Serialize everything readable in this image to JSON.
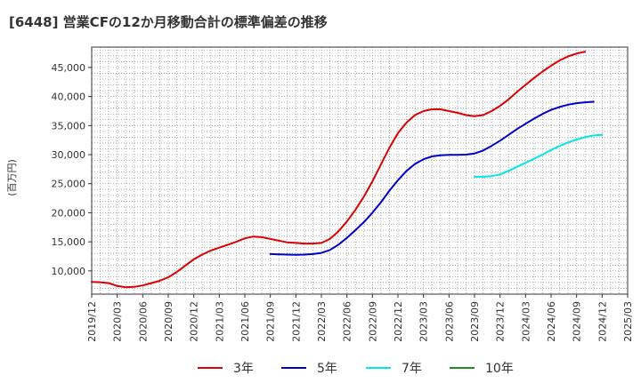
{
  "chart_data": {
    "type": "line",
    "title": "[6448]  営業CFの12か月移動合計の標準偏差の推移",
    "ylabel": "(百万円)",
    "xlabel": "",
    "xlim": [
      "2019-12",
      "2025-03"
    ],
    "ylim": [
      6000,
      48500
    ],
    "yticks": [
      10000,
      15000,
      20000,
      25000,
      30000,
      35000,
      40000,
      45000
    ],
    "ytick_labels": [
      "10,000",
      "15,000",
      "20,000",
      "25,000",
      "30,000",
      "35,000",
      "40,000",
      "45,000"
    ],
    "xticks": [
      "2019-12",
      "2020-03",
      "2020-06",
      "2020-09",
      "2020-12",
      "2021-03",
      "2021-06",
      "2021-09",
      "2021-12",
      "2022-03",
      "2022-06",
      "2022-09",
      "2022-12",
      "2023-03",
      "2023-06",
      "2023-09",
      "2023-12",
      "2024-03",
      "2024-06",
      "2024-09",
      "2024-12",
      "2025-03"
    ],
    "xtick_labels": [
      "2019/12",
      "2020/03",
      "2020/06",
      "2020/09",
      "2020/12",
      "2021/03",
      "2021/06",
      "2021/09",
      "2021/12",
      "2022/03",
      "2022/06",
      "2022/09",
      "2022/12",
      "2023/03",
      "2023/06",
      "2023/09",
      "2023/12",
      "2024/03",
      "2024/06",
      "2024/09",
      "2024/12",
      "2025/03"
    ],
    "grid": true,
    "legend_position": "bottom",
    "series": [
      {
        "name": "3年",
        "color": "#dd0000",
        "points": [
          [
            "2019-12",
            8100
          ],
          [
            "2020-01",
            8050
          ],
          [
            "2020-02",
            7900
          ],
          [
            "2020-03",
            7400
          ],
          [
            "2020-04",
            7200
          ],
          [
            "2020-05",
            7250
          ],
          [
            "2020-06",
            7500
          ],
          [
            "2020-07",
            7900
          ],
          [
            "2020-08",
            8300
          ],
          [
            "2020-09",
            8900
          ],
          [
            "2020-10",
            9800
          ],
          [
            "2020-11",
            10900
          ],
          [
            "2020-12",
            12000
          ],
          [
            "2021-01",
            12800
          ],
          [
            "2021-02",
            13500
          ],
          [
            "2021-03",
            14000
          ],
          [
            "2021-04",
            14500
          ],
          [
            "2021-05",
            15000
          ],
          [
            "2021-06",
            15600
          ],
          [
            "2021-07",
            15900
          ],
          [
            "2021-08",
            15800
          ],
          [
            "2021-09",
            15500
          ],
          [
            "2021-10",
            15200
          ],
          [
            "2021-11",
            14900
          ],
          [
            "2021-12",
            14800
          ],
          [
            "2022-01",
            14700
          ],
          [
            "2022-02",
            14700
          ],
          [
            "2022-03",
            14800
          ],
          [
            "2022-04",
            15500
          ],
          [
            "2022-05",
            16800
          ],
          [
            "2022-06",
            18500
          ],
          [
            "2022-07",
            20500
          ],
          [
            "2022-08",
            22800
          ],
          [
            "2022-09",
            25400
          ],
          [
            "2022-10",
            28300
          ],
          [
            "2022-11",
            31200
          ],
          [
            "2022-12",
            33700
          ],
          [
            "2023-01",
            35500
          ],
          [
            "2023-02",
            36800
          ],
          [
            "2023-03",
            37500
          ],
          [
            "2023-04",
            37800
          ],
          [
            "2023-05",
            37800
          ],
          [
            "2023-06",
            37500
          ],
          [
            "2023-07",
            37200
          ],
          [
            "2023-08",
            36800
          ],
          [
            "2023-09",
            36600
          ],
          [
            "2023-10",
            36800
          ],
          [
            "2023-11",
            37500
          ],
          [
            "2023-12",
            38400
          ],
          [
            "2024-01",
            39500
          ],
          [
            "2024-02",
            40800
          ],
          [
            "2024-03",
            42000
          ],
          [
            "2024-04",
            43200
          ],
          [
            "2024-05",
            44300
          ],
          [
            "2024-06",
            45300
          ],
          [
            "2024-07",
            46200
          ],
          [
            "2024-08",
            46900
          ],
          [
            "2024-09",
            47400
          ],
          [
            "2024-10",
            47700
          ]
        ]
      },
      {
        "name": "5年",
        "color": "#0000cc",
        "points": [
          [
            "2021-09",
            12900
          ],
          [
            "2021-10",
            12850
          ],
          [
            "2021-11",
            12800
          ],
          [
            "2021-12",
            12750
          ],
          [
            "2022-01",
            12800
          ],
          [
            "2022-02",
            12900
          ],
          [
            "2022-03",
            13100
          ],
          [
            "2022-04",
            13600
          ],
          [
            "2022-05",
            14500
          ],
          [
            "2022-06",
            15700
          ],
          [
            "2022-07",
            17000
          ],
          [
            "2022-08",
            18400
          ],
          [
            "2022-09",
            20000
          ],
          [
            "2022-10",
            21800
          ],
          [
            "2022-11",
            23800
          ],
          [
            "2022-12",
            25600
          ],
          [
            "2023-01",
            27200
          ],
          [
            "2023-02",
            28400
          ],
          [
            "2023-03",
            29200
          ],
          [
            "2023-04",
            29700
          ],
          [
            "2023-05",
            29900
          ],
          [
            "2023-06",
            29950
          ],
          [
            "2023-07",
            29950
          ],
          [
            "2023-08",
            30000
          ],
          [
            "2023-09",
            30200
          ],
          [
            "2023-10",
            30700
          ],
          [
            "2023-11",
            31500
          ],
          [
            "2023-12",
            32400
          ],
          [
            "2024-01",
            33400
          ],
          [
            "2024-02",
            34400
          ],
          [
            "2024-03",
            35300
          ],
          [
            "2024-04",
            36200
          ],
          [
            "2024-05",
            37000
          ],
          [
            "2024-06",
            37700
          ],
          [
            "2024-07",
            38200
          ],
          [
            "2024-08",
            38600
          ],
          [
            "2024-09",
            38850
          ],
          [
            "2024-10",
            39000
          ],
          [
            "2024-11",
            39100
          ]
        ]
      },
      {
        "name": "7年",
        "color": "#00e5ee",
        "points": [
          [
            "2023-09",
            26200
          ],
          [
            "2023-10",
            26200
          ],
          [
            "2023-11",
            26300
          ],
          [
            "2023-12",
            26600
          ],
          [
            "2024-01",
            27200
          ],
          [
            "2024-02",
            27900
          ],
          [
            "2024-03",
            28600
          ],
          [
            "2024-04",
            29300
          ],
          [
            "2024-05",
            30000
          ],
          [
            "2024-06",
            30800
          ],
          [
            "2024-07",
            31500
          ],
          [
            "2024-08",
            32100
          ],
          [
            "2024-09",
            32600
          ],
          [
            "2024-10",
            33000
          ],
          [
            "2024-11",
            33300
          ],
          [
            "2024-12",
            33400
          ]
        ]
      },
      {
        "name": "10年",
        "color": "#228b22",
        "points": []
      }
    ]
  }
}
